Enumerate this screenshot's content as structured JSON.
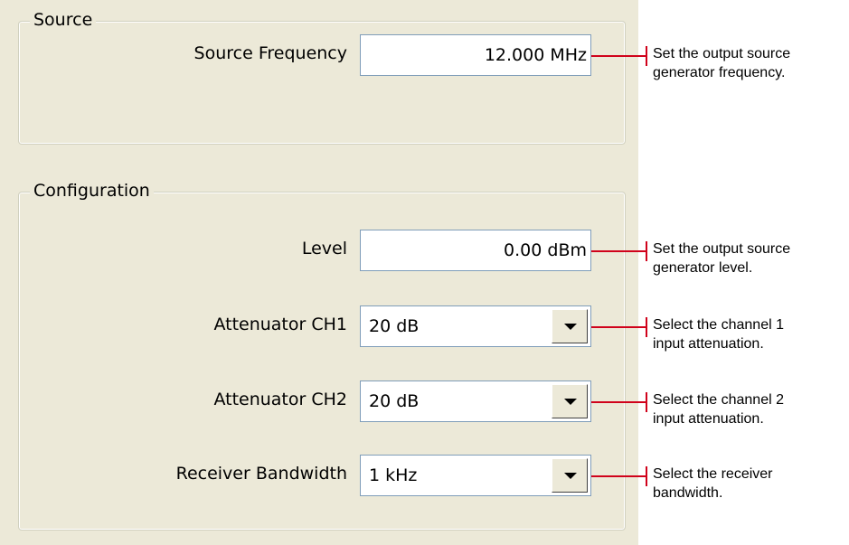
{
  "source": {
    "title": "Source",
    "fields": [
      {
        "label": "Source Frequency",
        "value": "12.000 MHz",
        "note": [
          "Set the output source",
          "generator frequency."
        ]
      }
    ]
  },
  "configuration": {
    "title": "Configuration",
    "fields": [
      {
        "label": "Level",
        "value": "0.00 dBm",
        "note": [
          "Set the output source",
          "generator level."
        ]
      },
      {
        "label": "Attenuator CH1",
        "value": "20 dB",
        "note": [
          "Select the channel 1",
          "input attenuation."
        ]
      },
      {
        "label": "Attenuator CH2",
        "value": "20 dB",
        "note": [
          "Select the channel 2",
          "input attenuation."
        ]
      },
      {
        "label": "Receiver Bandwidth",
        "value": "1 kHz",
        "note": [
          "Select the receiver",
          "bandwidth."
        ]
      }
    ]
  }
}
